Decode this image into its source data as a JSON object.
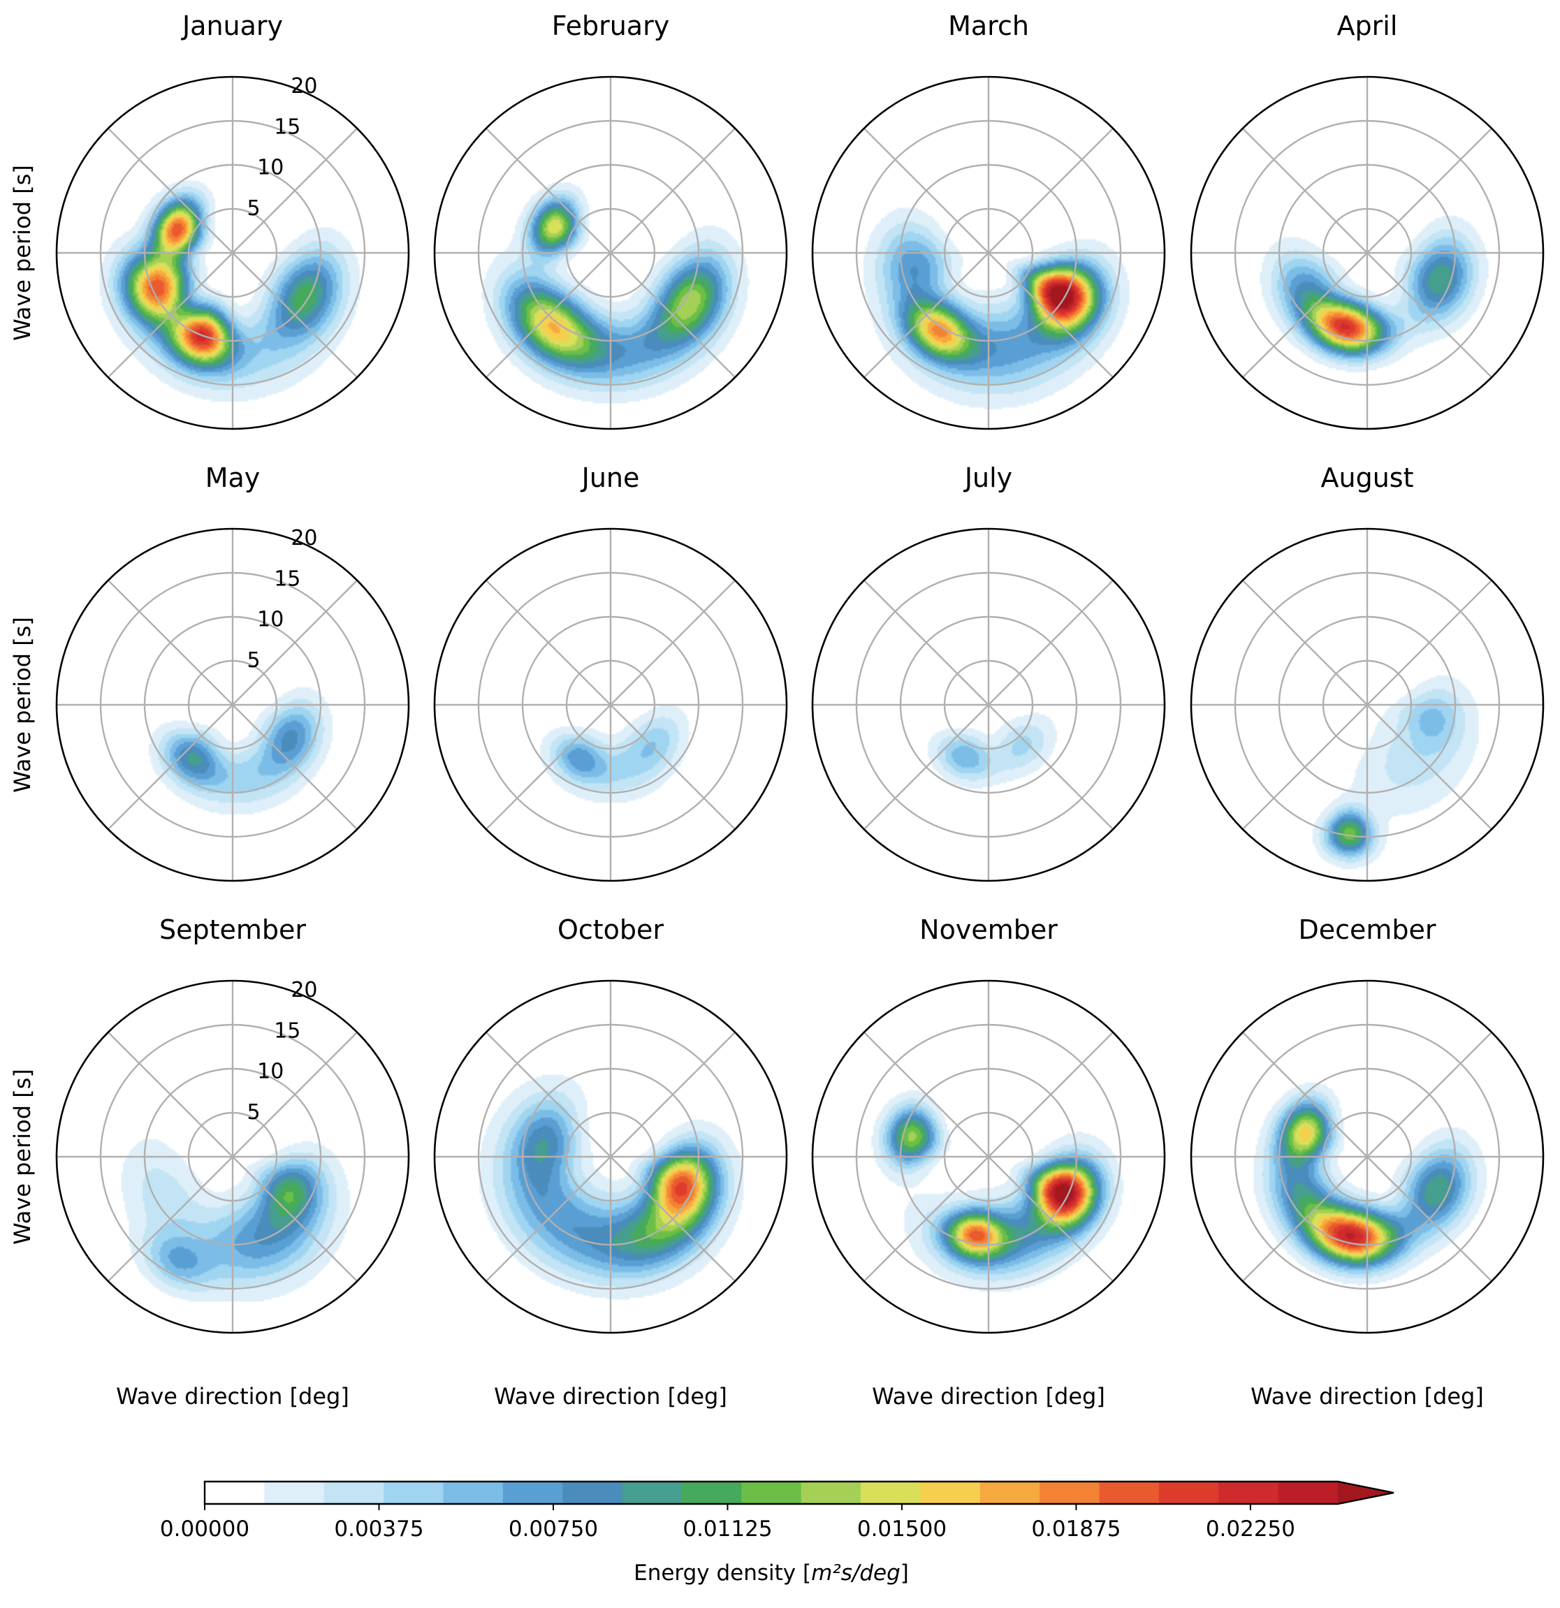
{
  "chart_data": {
    "type": "polar-contour",
    "layout": {
      "rows": 3,
      "cols": 4
    },
    "radial_axis": {
      "label": "Wave period [s]",
      "ticks": [
        5,
        10,
        15,
        20
      ],
      "range": [
        0,
        20
      ]
    },
    "angular_axis": {
      "label": "Wave direction [deg]"
    },
    "grid": true,
    "colorbar": {
      "label_prefix": "Energy density [",
      "label_math": "m²s/deg",
      "label_suffix": "]",
      "orientation": "horizontal",
      "placement": "bottom",
      "extend": "max",
      "range": [
        0,
        0.02438
      ],
      "ticks": [
        {
          "value": 0.0,
          "label": "0.00000"
        },
        {
          "value": 0.00375,
          "label": "0.00375"
        },
        {
          "value": 0.0075,
          "label": "0.00750"
        },
        {
          "value": 0.01125,
          "label": "0.01125"
        },
        {
          "value": 0.015,
          "label": "0.01500"
        },
        {
          "value": 0.01875,
          "label": "0.01875"
        },
        {
          "value": 0.0225,
          "label": "0.02250"
        }
      ],
      "levels": [
        "#ffffff",
        "#deeff9",
        "#c2e4f5",
        "#9fd5f1",
        "#7cbde7",
        "#5a9fd4",
        "#4a8cbc",
        "#469e8f",
        "#46aa5c",
        "#6cbf46",
        "#a5d056",
        "#d8e05a",
        "#f7cf4e",
        "#f6a93f",
        "#f48235",
        "#ea5a2f",
        "#dd3c2d",
        "#cf2a2c",
        "#bb1e27",
        "#a3171f"
      ]
    },
    "panels": [
      {
        "title": "January",
        "blobs": [
          {
            "theta": 293,
            "r": 6.8,
            "rs": 1.8,
            "ts": 20,
            "a": 0.02
          },
          {
            "theta": 245,
            "r": 9.5,
            "rs": 2.5,
            "ts": 16,
            "a": 0.019
          },
          {
            "theta": 200,
            "r": 10.0,
            "rs": 2.2,
            "ts": 13,
            "a": 0.019
          },
          {
            "theta": 120,
            "r": 9.5,
            "rs": 2.5,
            "ts": 22,
            "a": 0.01
          },
          {
            "theta": 180,
            "r": 12.0,
            "rs": 3.0,
            "ts": 40,
            "a": 0.004
          }
        ]
      },
      {
        "title": "February",
        "blobs": [
          {
            "theta": 295,
            "r": 7.0,
            "rs": 1.8,
            "ts": 18,
            "a": 0.015
          },
          {
            "theta": 220,
            "r": 10.5,
            "rs": 2.5,
            "ts": 22,
            "a": 0.014
          },
          {
            "theta": 120,
            "r": 10.5,
            "rs": 2.5,
            "ts": 20,
            "a": 0.011
          },
          {
            "theta": 170,
            "r": 11.5,
            "rs": 3.0,
            "ts": 40,
            "a": 0.006
          }
        ]
      },
      {
        "title": "March",
        "blobs": [
          {
            "theta": 120,
            "r": 9.5,
            "rs": 2.8,
            "ts": 14,
            "a": 0.024
          },
          {
            "theta": 213,
            "r": 10.5,
            "rs": 2.0,
            "ts": 15,
            "a": 0.014
          },
          {
            "theta": 170,
            "r": 11.0,
            "rs": 3.5,
            "ts": 40,
            "a": 0.007
          },
          {
            "theta": 260,
            "r": 8.5,
            "rs": 2.8,
            "ts": 22,
            "a": 0.007
          }
        ]
      },
      {
        "title": "April",
        "blobs": [
          {
            "theta": 195,
            "r": 8.8,
            "rs": 2.0,
            "ts": 20,
            "a": 0.021
          },
          {
            "theta": 110,
            "r": 8.8,
            "rs": 2.5,
            "ts": 22,
            "a": 0.01
          },
          {
            "theta": 240,
            "r": 8.0,
            "rs": 2.5,
            "ts": 22,
            "a": 0.007
          }
        ]
      },
      {
        "title": "May",
        "blobs": [
          {
            "theta": 218,
            "r": 7.5,
            "rs": 2.0,
            "ts": 18,
            "a": 0.008
          },
          {
            "theta": 118,
            "r": 7.5,
            "rs": 2.2,
            "ts": 22,
            "a": 0.007
          },
          {
            "theta": 170,
            "r": 8.5,
            "rs": 2.5,
            "ts": 32,
            "a": 0.004
          }
        ]
      },
      {
        "title": "June",
        "blobs": [
          {
            "theta": 212,
            "r": 7.0,
            "rs": 1.8,
            "ts": 18,
            "a": 0.006
          },
          {
            "theta": 130,
            "r": 6.5,
            "rs": 2.0,
            "ts": 25,
            "a": 0.004
          },
          {
            "theta": 175,
            "r": 7.5,
            "rs": 2.5,
            "ts": 30,
            "a": 0.003
          }
        ]
      },
      {
        "title": "July",
        "blobs": [
          {
            "theta": 205,
            "r": 6.5,
            "rs": 1.8,
            "ts": 20,
            "a": 0.006
          },
          {
            "theta": 140,
            "r": 6.0,
            "rs": 2.0,
            "ts": 25,
            "a": 0.004
          }
        ]
      },
      {
        "title": "August",
        "blobs": [
          {
            "theta": 188,
            "r": 14.8,
            "rs": 1.8,
            "ts": 7,
            "a": 0.012
          },
          {
            "theta": 140,
            "r": 8.0,
            "rs": 4.0,
            "ts": 35,
            "a": 0.003
          },
          {
            "theta": 100,
            "r": 7.5,
            "rs": 2.5,
            "ts": 18,
            "a": 0.004
          }
        ]
      },
      {
        "title": "September",
        "blobs": [
          {
            "theta": 120,
            "r": 7.5,
            "rs": 2.5,
            "ts": 20,
            "a": 0.009
          },
          {
            "theta": 160,
            "r": 10.0,
            "rs": 3.5,
            "ts": 30,
            "a": 0.007
          },
          {
            "theta": 208,
            "r": 13.5,
            "rs": 2.0,
            "ts": 12,
            "a": 0.005
          },
          {
            "theta": 240,
            "r": 9.0,
            "rs": 3.0,
            "ts": 30,
            "a": 0.003
          }
        ]
      },
      {
        "title": "October",
        "blobs": [
          {
            "theta": 110,
            "r": 8.5,
            "rs": 2.5,
            "ts": 18,
            "a": 0.015
          },
          {
            "theta": 140,
            "r": 10.0,
            "rs": 3.0,
            "ts": 30,
            "a": 0.009
          },
          {
            "theta": 220,
            "r": 9.0,
            "rs": 3.5,
            "ts": 50,
            "a": 0.007
          },
          {
            "theta": 285,
            "r": 7.5,
            "rs": 2.5,
            "ts": 25,
            "a": 0.006
          }
        ]
      },
      {
        "title": "November",
        "blobs": [
          {
            "theta": 115,
            "r": 9.5,
            "rs": 2.5,
            "ts": 14,
            "a": 0.022
          },
          {
            "theta": 190,
            "r": 9.0,
            "rs": 1.8,
            "ts": 14,
            "a": 0.014
          },
          {
            "theta": 285,
            "r": 9.0,
            "rs": 2.0,
            "ts": 14,
            "a": 0.013
          },
          {
            "theta": 160,
            "r": 9.5,
            "rs": 3.0,
            "ts": 40,
            "a": 0.008
          }
        ]
      },
      {
        "title": "December",
        "blobs": [
          {
            "theta": 190,
            "r": 9.2,
            "rs": 2.2,
            "ts": 22,
            "a": 0.022
          },
          {
            "theta": 292,
            "r": 7.5,
            "rs": 2.0,
            "ts": 18,
            "a": 0.015
          },
          {
            "theta": 115,
            "r": 8.8,
            "rs": 2.5,
            "ts": 22,
            "a": 0.01
          },
          {
            "theta": 240,
            "r": 8.5,
            "rs": 2.5,
            "ts": 25,
            "a": 0.008
          }
        ]
      }
    ]
  }
}
